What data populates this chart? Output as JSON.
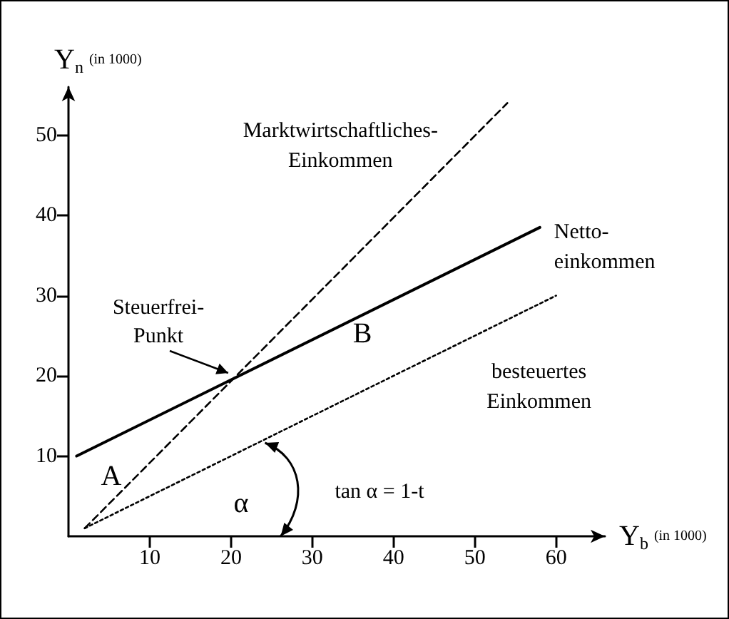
{
  "chart_data": {
    "type": "line",
    "xlabel": "Y$_{b}$ (in 1000)",
    "ylabel": "Y$_{n}$ (in 1000)",
    "xlim": [
      0,
      66
    ],
    "ylim": [
      0,
      56
    ],
    "xticks": [
      10,
      20,
      30,
      40,
      50,
      60
    ],
    "yticks": [
      10,
      20,
      30,
      40,
      50
    ],
    "grid": false,
    "legend": false,
    "marker": "none",
    "series": [
      {
        "name": "Marktwirtschaftliches-\nEinkommen",
        "color": "#000000",
        "line_style": "dashed",
        "x": [
          2,
          54
        ],
        "values": [
          1,
          54
        ]
      },
      {
        "name": "Netto-\neinkommen",
        "color": "#000000",
        "line_style": "solid",
        "x": [
          1,
          58
        ],
        "values": [
          10,
          38.5
        ]
      },
      {
        "name": "besteuertes\nEinkommen",
        "color": "#000000",
        "line_style": "dotted",
        "x": [
          2,
          60
        ],
        "values": [
          1,
          30
        ]
      }
    ],
    "annotations": [
      {
        "text": "Steuerfrei-\nPunkt",
        "x": 20,
        "y": 20
      },
      "A",
      "B",
      {
        "text": "α",
        "x": 24,
        "y": 12
      },
      "tan α = 1-t"
    ]
  }
}
